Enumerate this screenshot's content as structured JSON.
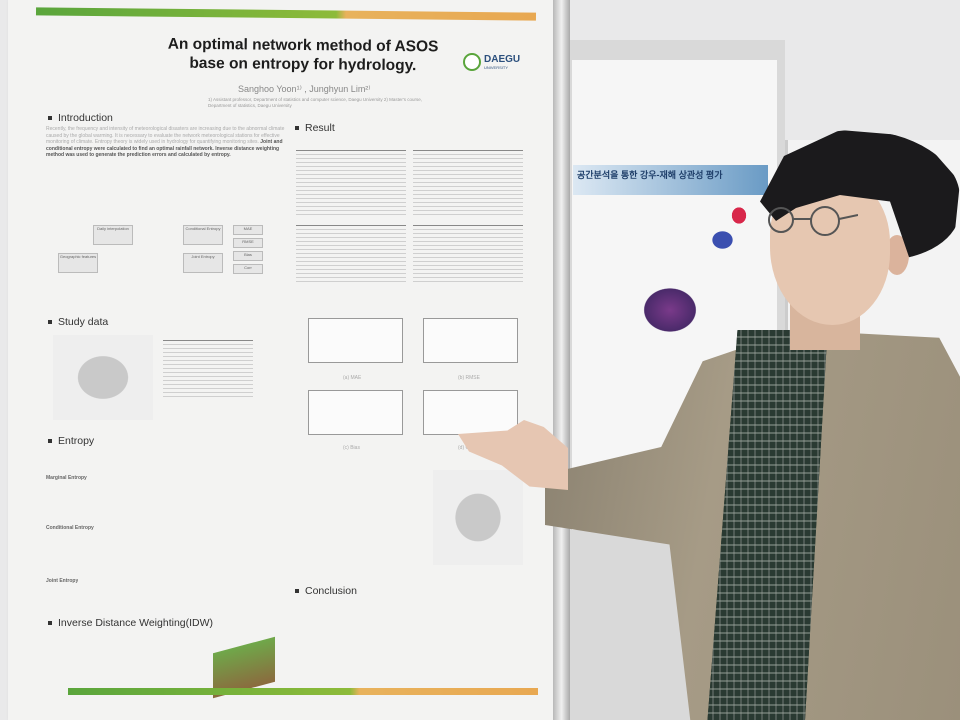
{
  "poster": {
    "title": "An optimal network method of ASOS base on entropy for hydrology.",
    "authors": "Sanghoo Yoon¹⁾ ,  Junghyun Lim²⁾",
    "affiliations": "1) Assistant professor, Department of statistics and computer science, Daegu University\n2) Master's course, Department of statistics, Daegu University",
    "logo_text": "DAEGU",
    "logo_subtext": "UNIVERSITY",
    "sections": {
      "introduction": "Introduction",
      "study_data": "Study data",
      "entropy": "Entropy",
      "idw": "Inverse Distance Weighting(IDW)",
      "result": "Result",
      "conclusion": "Conclusion"
    },
    "intro_text": "Recently, the frequency and intensity of meteorological disasters are increasing due to the abnormal climate caused by the global warming. It is necessary to evaluate the network meteorological stations for effective monitoring of climate. Entropy theory is widely used in hydrology for quantifying monitoring sites.",
    "intro_bold": "Joint and conditional entropy were calculated to find an optimal rainfall network. Inverse distance weighting method was used to generate the prediction errors and calculated by entropy.",
    "entropy_labels": [
      "Marginal Entropy",
      "Conditional Entropy",
      "Joint Entropy"
    ],
    "diagram_boxes": [
      "Daily interpolation",
      "Conditional Entropy",
      "MAE",
      "RMSE",
      "Bias",
      "Corr",
      "Geographic features",
      "Joint Entropy"
    ],
    "chart_labels": [
      "(a) MAE",
      "(b) RMSE",
      "(c) Bias",
      "(d) Corr"
    ]
  },
  "neighbor_poster": {
    "banner_title": "공간분석을 통한 강우-재해 상관성 평가"
  }
}
